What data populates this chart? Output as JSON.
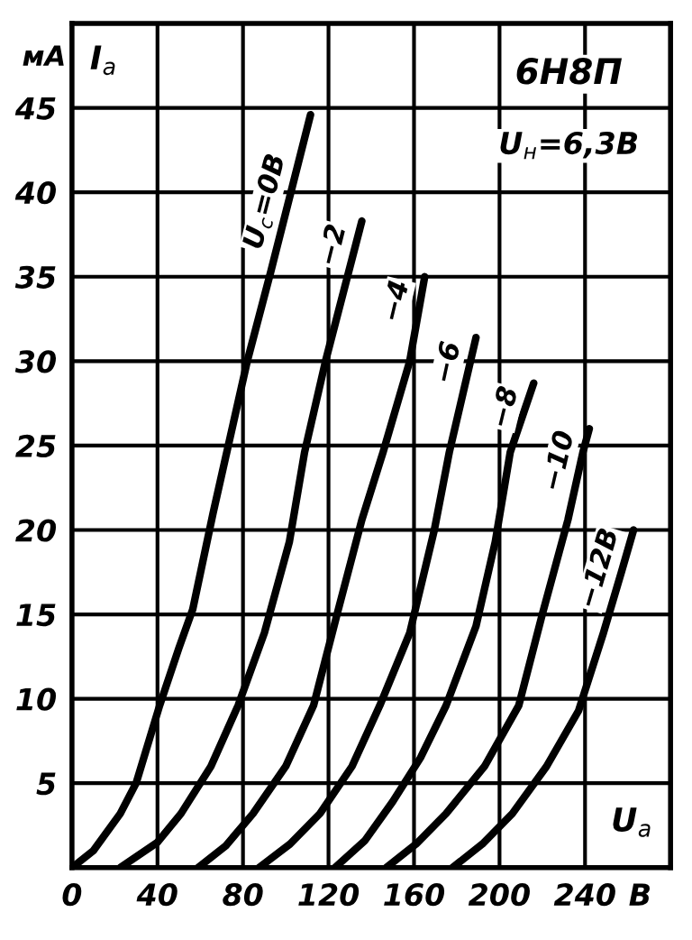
{
  "chart_data": {
    "type": "line",
    "title": "6Н8П",
    "subtitle": "U$_{н}$=6,3В",
    "xlabel": "U$_{а}$",
    "ylabel": "I$_{а}$",
    "annotations": [
      "мА",
      "В"
    ],
    "xlim": [
      0,
      280
    ],
    "ylim": [
      0,
      50
    ],
    "xticks": [
      0,
      40,
      80,
      120,
      160,
      200,
      240
    ],
    "yticks": [
      5,
      10,
      15,
      20,
      25,
      30,
      35,
      40,
      45
    ],
    "grid": true,
    "legend": false,
    "marker": "none",
    "line_style": "solid",
    "series": [
      {
        "name": "U$_{с}$=0В",
        "color": "#000000",
        "x": [
          0,
          10,
          22.6,
          30,
          41,
          50,
          56.5,
          66,
          82,
          93,
          111.6
        ],
        "values": [
          0,
          1,
          3.2,
          5,
          9.6,
          13,
          15.3,
          21,
          30,
          35.3,
          44.6
        ]
      },
      {
        "name": "−2",
        "color": "#000000",
        "x": [
          22.6,
          40,
          51,
          65,
          77.7,
          90,
          101.7,
          108.8,
          118.6,
          135.6
        ],
        "values": [
          0,
          1.5,
          3.2,
          6,
          9.6,
          13.9,
          19.3,
          24.6,
          30,
          38.3
        ]
      },
      {
        "name": "−4",
        "color": "#000000",
        "x": [
          59,
          72,
          84.7,
          100,
          113,
          124,
          135.6,
          145.5,
          158,
          165
        ],
        "values": [
          0,
          1.3,
          3.2,
          6,
          9.6,
          15,
          20.6,
          24.6,
          30,
          35
        ]
      },
      {
        "name": "−6",
        "color": "#000000",
        "x": [
          87.5,
          102,
          116,
          131,
          144,
          158,
          169.5,
          176.5,
          189
        ],
        "values": [
          0,
          1.4,
          3.2,
          6,
          9.6,
          13.9,
          20,
          24.6,
          31.4
        ]
      },
      {
        "name": "−8",
        "color": "#000000",
        "x": [
          123,
          137,
          150,
          163,
          175,
          189,
          198,
          205,
          216
        ],
        "values": [
          0,
          1.6,
          3.9,
          6.5,
          9.6,
          14.3,
          19.3,
          24.6,
          28.7
        ]
      },
      {
        "name": "−10",
        "color": "#000000",
        "x": [
          147,
          161,
          175,
          193,
          209,
          220,
          232,
          239,
          242
        ],
        "values": [
          0,
          1.4,
          3.2,
          6,
          9.6,
          15,
          20.6,
          24.6,
          26
        ]
      },
      {
        "name": "−12В",
        "color": "#000000",
        "x": [
          178,
          192,
          206,
          222,
          237,
          248.6,
          257,
          262.7
        ],
        "values": [
          0,
          1.4,
          3.2,
          6,
          9.3,
          13.9,
          17.5,
          20
        ]
      }
    ]
  }
}
